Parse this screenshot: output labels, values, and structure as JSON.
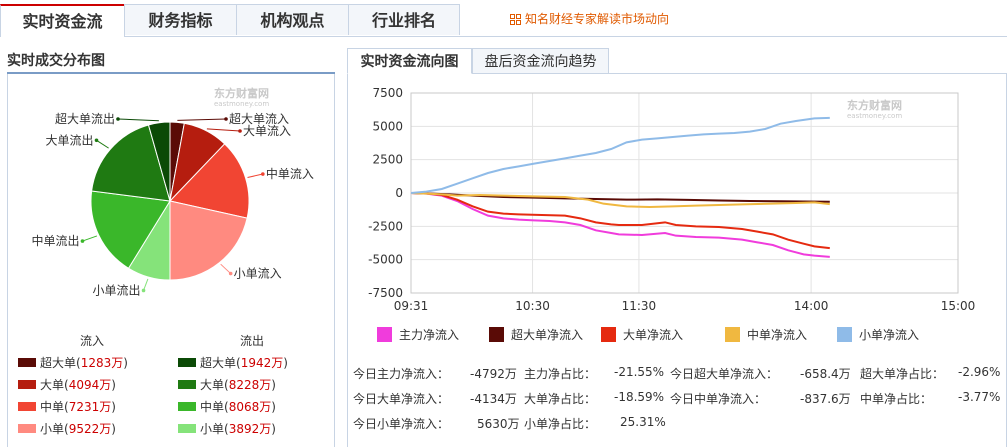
{
  "tabs": [
    {
      "label": "实时资金流",
      "active": true
    },
    {
      "label": "财务指标",
      "active": false
    },
    {
      "label": "机构观点",
      "active": false
    },
    {
      "label": "行业排名",
      "active": false
    }
  ],
  "promo_link": "知名财经专家解读市场动向",
  "left_title": "实时成交分布图",
  "watermark": {
    "brand": "东方财富网",
    "domain": "eastmoney.com"
  },
  "pie": {
    "slices": [
      {
        "label": "超大单流入",
        "value": 1283,
        "color": "#5a0b06"
      },
      {
        "label": "大单流入",
        "value": 4094,
        "color": "#b51d0f"
      },
      {
        "label": "中单流入",
        "value": 7231,
        "color": "#f14533"
      },
      {
        "label": "小单流入",
        "value": 9522,
        "color": "#ff8a80"
      },
      {
        "label": "小单流出",
        "value": 3892,
        "color": "#85e37a"
      },
      {
        "label": "中单流出",
        "value": 8068,
        "color": "#3ab72a"
      },
      {
        "label": "大单流出",
        "value": 8228,
        "color": "#1f7a12"
      },
      {
        "label": "超大单流出",
        "value": 1942,
        "color": "#0b4a06"
      }
    ]
  },
  "legend": {
    "inflow_title": "流入",
    "outflow_title": "流出",
    "inflow": [
      {
        "name": "超大单",
        "value": "1283万",
        "color": "#5a0b06"
      },
      {
        "name": "大单",
        "value": "4094万",
        "color": "#b51d0f"
      },
      {
        "name": "中单",
        "value": "7231万",
        "color": "#f14533"
      },
      {
        "name": "小单",
        "value": "9522万",
        "color": "#ff8a80"
      }
    ],
    "outflow": [
      {
        "name": "超大单",
        "value": "1942万",
        "color": "#0b4a06"
      },
      {
        "name": "大单",
        "value": "8228万",
        "color": "#1f7a12"
      },
      {
        "name": "中单",
        "value": "8068万",
        "color": "#3ab72a"
      },
      {
        "name": "小单",
        "value": "3892万",
        "color": "#85e37a"
      }
    ]
  },
  "subtabs": [
    {
      "label": "实时资金流向图",
      "active": true
    },
    {
      "label": "盘后资金流向趋势",
      "active": false
    }
  ],
  "chart_data": {
    "type": "line",
    "ylim": [
      -7500,
      7500
    ],
    "yticks": [
      "7500",
      "5000",
      "2500",
      "0",
      "-2500",
      "-5000",
      "-7500"
    ],
    "xticks": [
      "09:31",
      "10:30",
      "11:30",
      "14:00",
      "15:00"
    ],
    "grid": true,
    "legend_position": "bottom",
    "series": [
      {
        "name": "主力净流入",
        "color": "#f03cdc",
        "points": [
          [
            0,
            0
          ],
          [
            10,
            -50
          ],
          [
            20,
            -200
          ],
          [
            30,
            -600
          ],
          [
            40,
            -1200
          ],
          [
            50,
            -1700
          ],
          [
            60,
            -1900
          ],
          [
            70,
            -2000
          ],
          [
            80,
            -2050
          ],
          [
            90,
            -2100
          ],
          [
            100,
            -2200
          ],
          [
            110,
            -2400
          ],
          [
            120,
            -2800
          ],
          [
            130,
            -3000
          ],
          [
            135,
            -3100
          ],
          [
            150,
            -3150
          ],
          [
            165,
            -3000
          ],
          [
            172,
            -3200
          ],
          [
            185,
            -3300
          ],
          [
            200,
            -3350
          ],
          [
            215,
            -3500
          ],
          [
            225,
            -3700
          ],
          [
            235,
            -3900
          ],
          [
            245,
            -4300
          ],
          [
            255,
            -4600
          ],
          [
            262,
            -4700
          ],
          [
            272,
            -4792
          ]
        ]
      },
      {
        "name": "超大单净流入",
        "color": "#5a0b06",
        "points": [
          [
            0,
            0
          ],
          [
            10,
            -30
          ],
          [
            25,
            -100
          ],
          [
            40,
            -200
          ],
          [
            60,
            -300
          ],
          [
            80,
            -350
          ],
          [
            100,
            -400
          ],
          [
            120,
            -450
          ],
          [
            140,
            -500
          ],
          [
            160,
            -480
          ],
          [
            180,
            -520
          ],
          [
            200,
            -560
          ],
          [
            220,
            -600
          ],
          [
            240,
            -620
          ],
          [
            255,
            -640
          ],
          [
            272,
            -658
          ]
        ]
      },
      {
        "name": "大单净流入",
        "color": "#e52a10",
        "points": [
          [
            0,
            0
          ],
          [
            10,
            -40
          ],
          [
            20,
            -150
          ],
          [
            30,
            -500
          ],
          [
            40,
            -1000
          ],
          [
            50,
            -1400
          ],
          [
            60,
            -1550
          ],
          [
            70,
            -1600
          ],
          [
            85,
            -1650
          ],
          [
            100,
            -1700
          ],
          [
            110,
            -1900
          ],
          [
            120,
            -2200
          ],
          [
            130,
            -2350
          ],
          [
            135,
            -2400
          ],
          [
            150,
            -2400
          ],
          [
            165,
            -2200
          ],
          [
            172,
            -2400
          ],
          [
            185,
            -2500
          ],
          [
            200,
            -2550
          ],
          [
            215,
            -2700
          ],
          [
            225,
            -2900
          ],
          [
            235,
            -3100
          ],
          [
            245,
            -3500
          ],
          [
            255,
            -3800
          ],
          [
            262,
            -4000
          ],
          [
            272,
            -4134
          ]
        ]
      },
      {
        "name": "中单净流入",
        "color": "#f0b840",
        "points": [
          [
            0,
            0
          ],
          [
            10,
            -50
          ],
          [
            20,
            -100
          ],
          [
            30,
            -200
          ],
          [
            45,
            -150
          ],
          [
            60,
            -200
          ],
          [
            80,
            -250
          ],
          [
            100,
            -300
          ],
          [
            115,
            -500
          ],
          [
            125,
            -800
          ],
          [
            140,
            -1000
          ],
          [
            155,
            -1050
          ],
          [
            170,
            -1000
          ],
          [
            185,
            -950
          ],
          [
            200,
            -900
          ],
          [
            215,
            -850
          ],
          [
            235,
            -800
          ],
          [
            250,
            -750
          ],
          [
            262,
            -700
          ],
          [
            272,
            -838
          ]
        ]
      },
      {
        "name": "小单净流入",
        "color": "#8fbbe8",
        "points": [
          [
            0,
            0
          ],
          [
            10,
            100
          ],
          [
            20,
            300
          ],
          [
            30,
            700
          ],
          [
            40,
            1100
          ],
          [
            50,
            1500
          ],
          [
            60,
            1800
          ],
          [
            70,
            2000
          ],
          [
            80,
            2200
          ],
          [
            90,
            2400
          ],
          [
            100,
            2600
          ],
          [
            110,
            2800
          ],
          [
            120,
            3000
          ],
          [
            130,
            3300
          ],
          [
            140,
            3800
          ],
          [
            150,
            4000
          ],
          [
            160,
            4100
          ],
          [
            170,
            4200
          ],
          [
            180,
            4300
          ],
          [
            190,
            4400
          ],
          [
            200,
            4450
          ],
          [
            210,
            4500
          ],
          [
            220,
            4600
          ],
          [
            230,
            4800
          ],
          [
            240,
            5200
          ],
          [
            250,
            5400
          ],
          [
            262,
            5600
          ],
          [
            272,
            5630
          ]
        ]
      }
    ]
  },
  "stats": [
    {
      "label": "今日主力净流入：",
      "value": "-4792万"
    },
    {
      "label": "主力净占比：",
      "value": "-21.55%"
    },
    {
      "label": "今日超大单净流入：",
      "value": "-658.4万"
    },
    {
      "label": "超大单净占比：",
      "value": "-2.96%"
    },
    {
      "label": "今日大单净流入：",
      "value": "-4134万"
    },
    {
      "label": "大单净占比：",
      "value": "-18.59%"
    },
    {
      "label": "今日中单净流入：",
      "value": "-837.6万"
    },
    {
      "label": "中单净占比：",
      "value": "-3.77%"
    },
    {
      "label": "今日小单净流入：",
      "value": "5630万"
    },
    {
      "label": "小单净占比：",
      "value": "25.31%"
    }
  ]
}
